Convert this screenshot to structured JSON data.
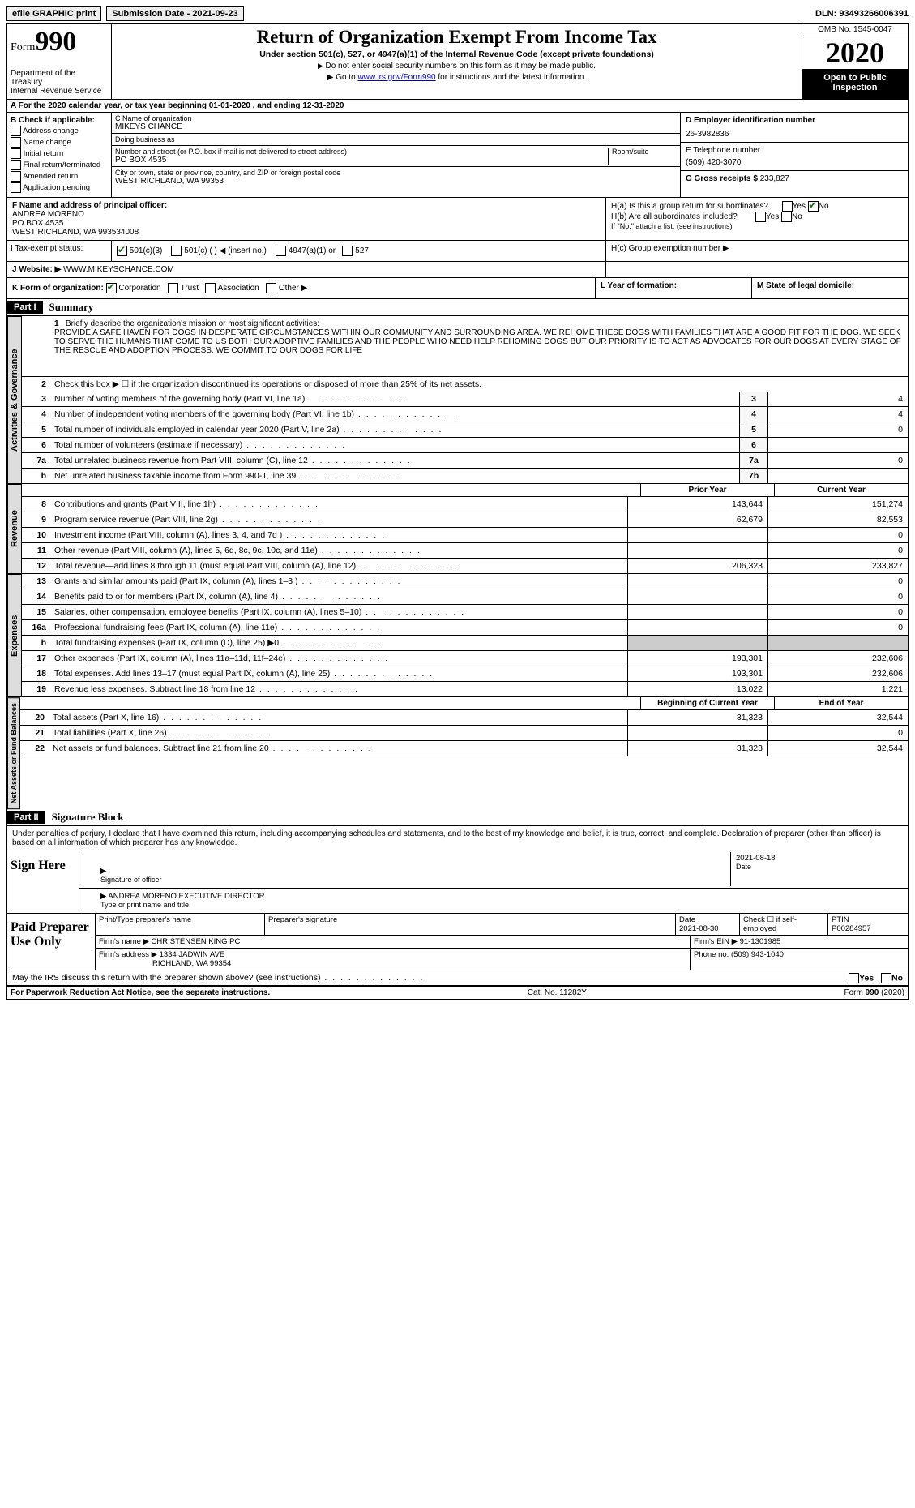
{
  "top": {
    "efile": "efile GRAPHIC print",
    "submission": "Submission Date - 2021-09-23",
    "dln": "DLN: 93493266006391"
  },
  "header": {
    "form_label": "Form",
    "form_number": "990",
    "dept": "Department of the Treasury",
    "irs": "Internal Revenue Service",
    "title": "Return of Organization Exempt From Income Tax",
    "subtitle": "Under section 501(c), 527, or 4947(a)(1) of the Internal Revenue Code (except private foundations)",
    "note1": "Do not enter social security numbers on this form as it may be made public.",
    "note2_pre": "Go to ",
    "note2_link": "www.irs.gov/Form990",
    "note2_post": " for instructions and the latest information.",
    "omb": "OMB No. 1545-0047",
    "year": "2020",
    "open": "Open to Public Inspection"
  },
  "rowA": "A For the 2020 calendar year, or tax year beginning 01-01-2020   , and ending 12-31-2020",
  "B": {
    "title": "B Check if applicable:",
    "opts": [
      "Address change",
      "Name change",
      "Initial return",
      "Final return/terminated",
      "Amended return",
      "Application pending"
    ]
  },
  "C": {
    "name_label": "C Name of organization",
    "name": "MIKEYS CHANCE",
    "dba_label": "Doing business as",
    "dba": "",
    "addr_label": "Number and street (or P.O. box if mail is not delivered to street address)",
    "addr": "PO BOX 4535",
    "room_label": "Room/suite",
    "city_label": "City or town, state or province, country, and ZIP or foreign postal code",
    "city": "WEST RICHLAND, WA  99353"
  },
  "D": {
    "label": "D Employer identification number",
    "value": "26-3982836"
  },
  "E": {
    "label": "E Telephone number",
    "value": "(509) 420-3070"
  },
  "G": {
    "label": "G Gross receipts $",
    "value": "233,827"
  },
  "F": {
    "label": "F Name and address of principal officer:",
    "name": "ANDREA MORENO",
    "addr1": "PO BOX 4535",
    "addr2": "WEST RICHLAND, WA  993534008"
  },
  "H": {
    "a": "H(a)  Is this a group return for subordinates?",
    "b": "H(b)  Are all subordinates included?",
    "b_note": "If \"No,\" attach a list. (see instructions)",
    "c": "H(c)  Group exemption number ▶"
  },
  "I": {
    "label": "I   Tax-exempt status:",
    "opts": [
      "501(c)(3)",
      "501(c) (  ) ◀ (insert no.)",
      "4947(a)(1) or",
      "527"
    ]
  },
  "J": {
    "label": "J   Website: ▶",
    "value": "WWW.MIKEYSCHANCE.COM"
  },
  "K": {
    "label": "K Form of organization:",
    "opts": [
      "Corporation",
      "Trust",
      "Association",
      "Other ▶"
    ]
  },
  "L": "L Year of formation:",
  "M": "M State of legal domicile:",
  "part1": {
    "label": "Part I",
    "title": "Summary",
    "line1_label": "Briefly describe the organization's mission or most significant activities:",
    "mission": "PROVIDE A SAFE HAVEN FOR DOGS IN DESPERATE CIRCUMSTANCES WITHIN OUR COMMUNITY AND SURROUNDING AREA. WE REHOME THESE DOGS WITH FAMILIES THAT ARE A GOOD FIT FOR THE DOG. WE SEEK TO SERVE THE HUMANS THAT COME TO US BOTH OUR ADOPTIVE FAMILIES AND THE PEOPLE WHO NEED HELP REHOMING DOGS BUT OUR PRIORITY IS TO ACT AS ADVOCATES FOR OUR DOGS AT EVERY STAGE OF THE RESCUE AND ADOPTION PROCESS. WE COMMIT TO OUR DOGS FOR LIFE",
    "line2": "Check this box ▶ ☐ if the organization discontinued its operations or disposed of more than 25% of its net assets.",
    "lines": [
      {
        "n": "3",
        "t": "Number of voting members of the governing body (Part VI, line 1a)",
        "box": "3",
        "v": "4"
      },
      {
        "n": "4",
        "t": "Number of independent voting members of the governing body (Part VI, line 1b)",
        "box": "4",
        "v": "4"
      },
      {
        "n": "5",
        "t": "Total number of individuals employed in calendar year 2020 (Part V, line 2a)",
        "box": "5",
        "v": "0"
      },
      {
        "n": "6",
        "t": "Total number of volunteers (estimate if necessary)",
        "box": "6",
        "v": ""
      },
      {
        "n": "7a",
        "t": "Total unrelated business revenue from Part VIII, column (C), line 12",
        "box": "7a",
        "v": "0"
      },
      {
        "n": "b",
        "t": "Net unrelated business taxable income from Form 990-T, line 39",
        "box": "7b",
        "v": ""
      }
    ]
  },
  "fin": {
    "prior_hdr": "Prior Year",
    "curr_hdr": "Current Year",
    "rev_tab": "Revenue",
    "exp_tab": "Expenses",
    "net_tab": "Net Assets or Fund Balances",
    "rev": [
      {
        "n": "8",
        "t": "Contributions and grants (Part VIII, line 1h)",
        "p": "143,644",
        "c": "151,274"
      },
      {
        "n": "9",
        "t": "Program service revenue (Part VIII, line 2g)",
        "p": "62,679",
        "c": "82,553"
      },
      {
        "n": "10",
        "t": "Investment income (Part VIII, column (A), lines 3, 4, and 7d )",
        "p": "",
        "c": "0"
      },
      {
        "n": "11",
        "t": "Other revenue (Part VIII, column (A), lines 5, 6d, 8c, 9c, 10c, and 11e)",
        "p": "",
        "c": "0"
      },
      {
        "n": "12",
        "t": "Total revenue—add lines 8 through 11 (must equal Part VIII, column (A), line 12)",
        "p": "206,323",
        "c": "233,827"
      }
    ],
    "exp": [
      {
        "n": "13",
        "t": "Grants and similar amounts paid (Part IX, column (A), lines 1–3 )",
        "p": "",
        "c": "0"
      },
      {
        "n": "14",
        "t": "Benefits paid to or for members (Part IX, column (A), line 4)",
        "p": "",
        "c": "0"
      },
      {
        "n": "15",
        "t": "Salaries, other compensation, employee benefits (Part IX, column (A), lines 5–10)",
        "p": "",
        "c": "0"
      },
      {
        "n": "16a",
        "t": "Professional fundraising fees (Part IX, column (A), line 11e)",
        "p": "",
        "c": "0"
      },
      {
        "n": "b",
        "t": "Total fundraising expenses (Part IX, column (D), line 25) ▶0",
        "p": "—",
        "c": "—"
      },
      {
        "n": "17",
        "t": "Other expenses (Part IX, column (A), lines 11a–11d, 11f–24e)",
        "p": "193,301",
        "c": "232,606"
      },
      {
        "n": "18",
        "t": "Total expenses. Add lines 13–17 (must equal Part IX, column (A), line 25)",
        "p": "193,301",
        "c": "232,606"
      },
      {
        "n": "19",
        "t": "Revenue less expenses. Subtract line 18 from line 12",
        "p": "13,022",
        "c": "1,221"
      }
    ],
    "net_hdr_p": "Beginning of Current Year",
    "net_hdr_c": "End of Year",
    "net": [
      {
        "n": "20",
        "t": "Total assets (Part X, line 16)",
        "p": "31,323",
        "c": "32,544"
      },
      {
        "n": "21",
        "t": "Total liabilities (Part X, line 26)",
        "p": "",
        "c": "0"
      },
      {
        "n": "22",
        "t": "Net assets or fund balances. Subtract line 21 from line 20",
        "p": "31,323",
        "c": "32,544"
      }
    ]
  },
  "part2": {
    "label": "Part II",
    "title": "Signature Block",
    "decl": "Under penalties of perjury, I declare that I have examined this return, including accompanying schedules and statements, and to the best of my knowledge and belief, it is true, correct, and complete. Declaration of preparer (other than officer) is based on all information of which preparer has any knowledge."
  },
  "sign": {
    "label": "Sign Here",
    "sig_officer": "Signature of officer",
    "date": "2021-08-18",
    "date_label": "Date",
    "name": "ANDREA MORENO  EXECUTIVE DIRECTOR",
    "name_label": "Type or print name and title"
  },
  "prep": {
    "label": "Paid Preparer Use Only",
    "h1": "Print/Type preparer's name",
    "h2": "Preparer's signature",
    "h3": "Date",
    "date": "2021-08-30",
    "h4": "Check ☐ if self-employed",
    "h5": "PTIN",
    "ptin": "P00284957",
    "firm_name_l": "Firm's name    ▶",
    "firm_name": "CHRISTENSEN KING PC",
    "firm_ein_l": "Firm's EIN ▶",
    "firm_ein": "91-1301985",
    "firm_addr_l": "Firm's address ▶",
    "firm_addr1": "1334 JADWIN AVE",
    "firm_addr2": "RICHLAND, WA  99354",
    "phone_l": "Phone no.",
    "phone": "(509) 943-1040"
  },
  "discuss": "May the IRS discuss this return with the preparer shown above? (see instructions)",
  "footer": {
    "left": "For Paperwork Reduction Act Notice, see the separate instructions.",
    "mid": "Cat. No. 11282Y",
    "right": "Form 990 (2020)"
  }
}
